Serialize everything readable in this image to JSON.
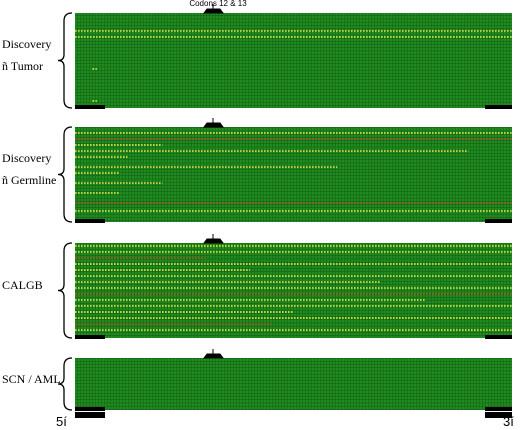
{
  "header": {
    "title": "Codons 12 & 13"
  },
  "panels": [
    {
      "label": [
        "Discovery",
        "ñ Tumor"
      ]
    },
    {
      "label": [
        "Discovery",
        "ñ Germline"
      ]
    },
    {
      "label": [
        "CALGB"
      ]
    },
    {
      "label": [
        "SCN / AML"
      ]
    }
  ],
  "ends": [
    "5í",
    "3í"
  ]
}
